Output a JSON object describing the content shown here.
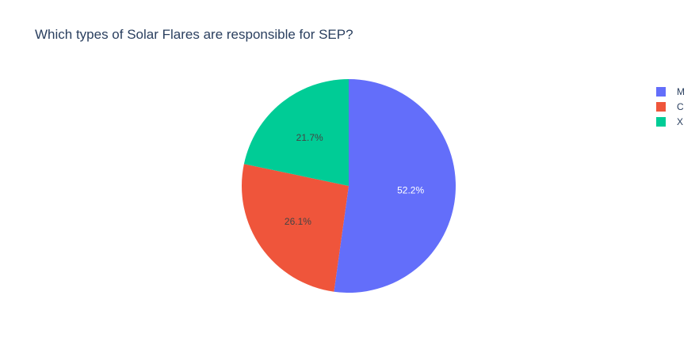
{
  "chart_data": {
    "type": "pie",
    "title": "Which types of Solar Flares are responsible for SEP?",
    "labels": [
      "M",
      "C",
      "X"
    ],
    "values": [
      52.2,
      26.1,
      21.7
    ],
    "value_labels": [
      "52.2%",
      "26.1%",
      "21.7%"
    ],
    "colors": [
      "#636efa",
      "#ef553b",
      "#00cc96"
    ],
    "label_colors": [
      "#ffffff",
      "#444444",
      "#444444"
    ],
    "legend_position": "top-right",
    "direction": "clockwise",
    "start": "top"
  }
}
